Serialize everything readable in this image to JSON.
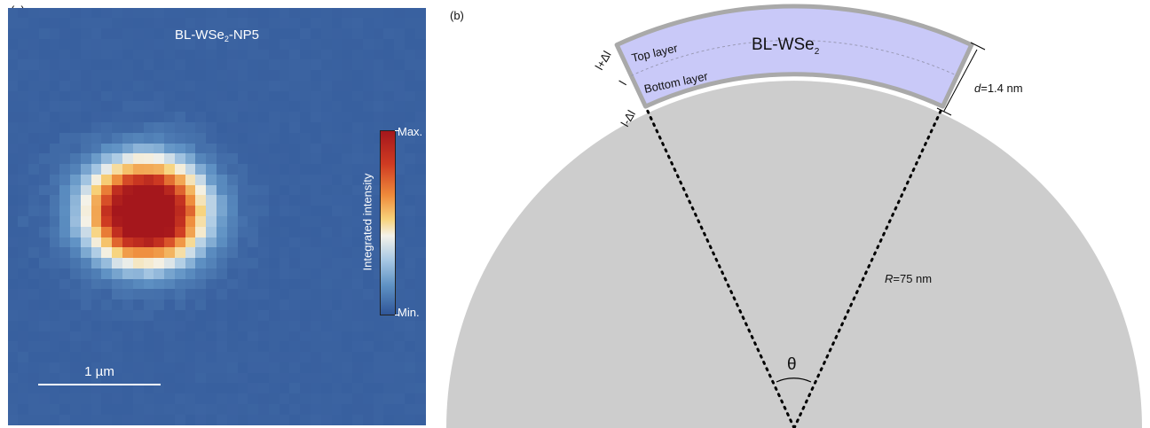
{
  "panel_a": {
    "label": "(a)",
    "title_main": "BL-WSe",
    "title_sub": "2",
    "title_suffix": "-NP5",
    "colorbar": {
      "max_label": "Max.",
      "min_label": "Min.",
      "axis_label": "Integrated intensity",
      "colors": [
        "#a5171c",
        "#cf3b22",
        "#ee8b3b",
        "#f7d27a",
        "#f4f2ea",
        "#a9c9e4",
        "#5f92c4",
        "#2f5598"
      ]
    },
    "scale_bar_label": "1 µm",
    "background_color": "#3b63a1"
  },
  "panel_b": {
    "label": "(b)",
    "shell_title_main": "BL-WSe",
    "shell_title_sub": "2",
    "top_layer_label": "Top layer",
    "bottom_layer_label": "Bottom layer",
    "length_top": "l+Δl",
    "length_mid": "l",
    "length_bottom": "l-Δl",
    "thickness_var": "d",
    "thickness_value": "=1.4 nm",
    "radius_var": "R",
    "radius_value": "=75 nm",
    "angle_label": "θ",
    "colors": {
      "sphere": "#cdcdcd",
      "shell_fill": "#c9c9f8",
      "shell_border": "#a9a9a9"
    }
  }
}
